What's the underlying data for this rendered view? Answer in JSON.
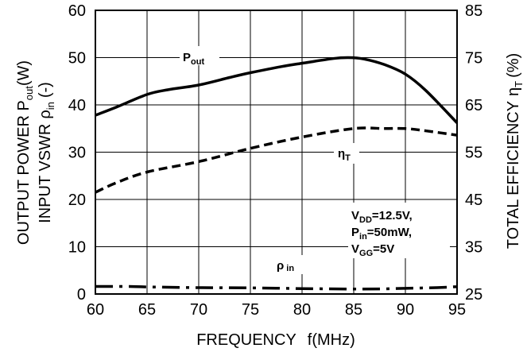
{
  "chart_data": {
    "type": "line",
    "xlabel_main": "FREQUENCY",
    "xlabel_sym": "f(MHz)",
    "xlim": [
      60,
      95
    ],
    "x_ticks": [
      "60",
      "65",
      "70",
      "75",
      "80",
      "85",
      "90",
      "95"
    ],
    "y_left": {
      "line1_main": "OUTPUT  POWER P",
      "line1_sub": "out",
      "line1_unit": "(W)",
      "line2_main": "INPUT VSWR",
      "line2_sym": "ρ",
      "line2_sub": "in",
      "line2_unit": "(-)",
      "ylim": [
        0,
        60
      ],
      "ticks": [
        "0",
        "10",
        "20",
        "30",
        "40",
        "50",
        "60"
      ]
    },
    "y_right": {
      "label_main": "TOTAL  EFFICIENCY",
      "label_sym": "η",
      "label_sub": "T",
      "label_unit": "(%)",
      "ylim": [
        25,
        85
      ],
      "ticks": [
        "25",
        "35",
        "45",
        "55",
        "65",
        "75",
        "85"
      ]
    },
    "grid": true,
    "series": [
      {
        "label_main": "P",
        "label_sub": "out",
        "axis": "left",
        "style": "solid",
        "points": [
          [
            60,
            37.8
          ],
          [
            62,
            39.5
          ],
          [
            65,
            42.2
          ],
          [
            67,
            43.2
          ],
          [
            70,
            44.2
          ],
          [
            73,
            45.8
          ],
          [
            75,
            46.8
          ],
          [
            78,
            48.1
          ],
          [
            80,
            48.8
          ],
          [
            83,
            49.8
          ],
          [
            84.5,
            50.0
          ],
          [
            86,
            49.7
          ],
          [
            88,
            48.5
          ],
          [
            90,
            46.5
          ],
          [
            92,
            43.0
          ],
          [
            95,
            36.2
          ]
        ]
      },
      {
        "label_main": "η",
        "label_sub": "T",
        "axis": "right",
        "style": "dashed",
        "points": [
          [
            60,
            46.5
          ],
          [
            62,
            48.5
          ],
          [
            65,
            50.8
          ],
          [
            70,
            53.0
          ],
          [
            75,
            55.8
          ],
          [
            80,
            58.2
          ],
          [
            85,
            60.0
          ],
          [
            88,
            60.0
          ],
          [
            90,
            60.0
          ],
          [
            92,
            59.5
          ],
          [
            95,
            58.6
          ]
        ]
      },
      {
        "label_main": "ρ",
        "label_sub": "in",
        "axis": "left",
        "style": "dashdot",
        "points": [
          [
            60,
            1.6
          ],
          [
            63,
            1.6
          ],
          [
            65,
            1.5
          ],
          [
            70,
            1.35
          ],
          [
            75,
            1.3
          ],
          [
            80,
            1.15
          ],
          [
            85,
            1.05
          ],
          [
            88,
            1.1
          ],
          [
            90,
            1.2
          ],
          [
            93,
            1.35
          ],
          [
            95,
            1.55
          ]
        ]
      }
    ],
    "conditions": [
      {
        "main": "V",
        "sub": "DD",
        "rest": "=12.5V,"
      },
      {
        "main": "P",
        "sub": "in",
        "rest": "=50mW,"
      },
      {
        "main": "V",
        "sub": "GG",
        "rest": "=5V"
      }
    ]
  }
}
